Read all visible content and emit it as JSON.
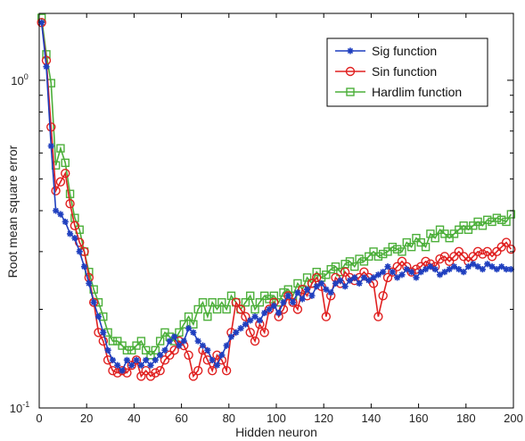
{
  "chart_data": {
    "type": "line",
    "title": "",
    "xlabel": "Hidden neuron",
    "ylabel": "Root mean square error",
    "xlim": [
      0,
      200
    ],
    "ylim": [
      0.1,
      1.6
    ],
    "yscale": "log",
    "grid": false,
    "legend_position": "top-right",
    "x_ticks": [
      "0",
      "20",
      "40",
      "60",
      "80",
      "100",
      "120",
      "140",
      "160",
      "180",
      "200"
    ],
    "y_ticks": [
      {
        "base": "10",
        "exp": "-1",
        "value": 0.1
      },
      {
        "base": "10",
        "exp": "0",
        "value": 1
      }
    ],
    "x": [
      1,
      3,
      5,
      7,
      9,
      11,
      13,
      15,
      17,
      19,
      21,
      23,
      25,
      27,
      29,
      31,
      33,
      35,
      37,
      39,
      41,
      43,
      45,
      47,
      49,
      51,
      53,
      55,
      57,
      59,
      61,
      63,
      65,
      67,
      69,
      71,
      73,
      75,
      77,
      79,
      81,
      83,
      85,
      87,
      89,
      91,
      93,
      95,
      97,
      99,
      101,
      103,
      105,
      107,
      109,
      111,
      113,
      115,
      117,
      119,
      121,
      123,
      125,
      127,
      129,
      131,
      133,
      135,
      137,
      139,
      141,
      143,
      145,
      147,
      149,
      151,
      153,
      155,
      157,
      159,
      161,
      163,
      165,
      167,
      169,
      171,
      173,
      175,
      177,
      179,
      181,
      183,
      185,
      187,
      189,
      191,
      193,
      195,
      197,
      199
    ],
    "series": [
      {
        "name": "Sig function",
        "color": "#1f3fbf",
        "marker": "star",
        "values": [
          1.5,
          1.1,
          0.63,
          0.4,
          0.39,
          0.37,
          0.34,
          0.33,
          0.3,
          0.27,
          0.24,
          0.21,
          0.19,
          0.17,
          0.15,
          0.14,
          0.135,
          0.13,
          0.14,
          0.135,
          0.14,
          0.135,
          0.14,
          0.135,
          0.14,
          0.145,
          0.15,
          0.16,
          0.165,
          0.155,
          0.16,
          0.175,
          0.17,
          0.16,
          0.155,
          0.15,
          0.14,
          0.135,
          0.145,
          0.155,
          0.165,
          0.17,
          0.175,
          0.18,
          0.185,
          0.19,
          0.185,
          0.195,
          0.2,
          0.205,
          0.195,
          0.21,
          0.22,
          0.21,
          0.225,
          0.215,
          0.23,
          0.22,
          0.235,
          0.24,
          0.23,
          0.225,
          0.24,
          0.245,
          0.235,
          0.245,
          0.25,
          0.24,
          0.25,
          0.245,
          0.25,
          0.255,
          0.26,
          0.27,
          0.26,
          0.25,
          0.255,
          0.265,
          0.26,
          0.25,
          0.26,
          0.265,
          0.27,
          0.265,
          0.255,
          0.26,
          0.265,
          0.27,
          0.265,
          0.26,
          0.27,
          0.275,
          0.27,
          0.265,
          0.275,
          0.27,
          0.265,
          0.27,
          0.265,
          0.265
        ]
      },
      {
        "name": "Sin function",
        "color": "#e02020",
        "marker": "circle",
        "values": [
          1.5,
          1.15,
          0.72,
          0.46,
          0.49,
          0.52,
          0.42,
          0.36,
          0.32,
          0.3,
          0.25,
          0.21,
          0.17,
          0.16,
          0.14,
          0.13,
          0.128,
          0.13,
          0.128,
          0.135,
          0.14,
          0.125,
          0.13,
          0.125,
          0.128,
          0.13,
          0.14,
          0.145,
          0.15,
          0.16,
          0.155,
          0.145,
          0.125,
          0.13,
          0.15,
          0.14,
          0.13,
          0.145,
          0.14,
          0.13,
          0.17,
          0.21,
          0.2,
          0.19,
          0.17,
          0.16,
          0.18,
          0.17,
          0.2,
          0.21,
          0.19,
          0.2,
          0.22,
          0.21,
          0.2,
          0.23,
          0.22,
          0.24,
          0.25,
          0.235,
          0.19,
          0.22,
          0.25,
          0.24,
          0.26,
          0.25,
          0.245,
          0.25,
          0.26,
          0.25,
          0.24,
          0.19,
          0.22,
          0.25,
          0.26,
          0.27,
          0.28,
          0.27,
          0.26,
          0.265,
          0.27,
          0.28,
          0.275,
          0.27,
          0.285,
          0.29,
          0.28,
          0.29,
          0.3,
          0.29,
          0.28,
          0.29,
          0.3,
          0.295,
          0.3,
          0.29,
          0.3,
          0.31,
          0.32,
          0.305
        ]
      },
      {
        "name": "Hardlim function",
        "color": "#4caf3a",
        "marker": "square",
        "values": [
          1.55,
          1.2,
          0.98,
          0.55,
          0.62,
          0.56,
          0.45,
          0.38,
          0.35,
          0.3,
          0.26,
          0.23,
          0.21,
          0.19,
          0.17,
          0.16,
          0.16,
          0.155,
          0.15,
          0.15,
          0.155,
          0.16,
          0.15,
          0.145,
          0.15,
          0.16,
          0.17,
          0.165,
          0.16,
          0.17,
          0.18,
          0.19,
          0.18,
          0.2,
          0.21,
          0.19,
          0.21,
          0.2,
          0.21,
          0.2,
          0.22,
          0.21,
          0.2,
          0.21,
          0.22,
          0.2,
          0.21,
          0.22,
          0.215,
          0.22,
          0.21,
          0.225,
          0.23,
          0.22,
          0.24,
          0.23,
          0.25,
          0.24,
          0.26,
          0.25,
          0.255,
          0.265,
          0.27,
          0.26,
          0.275,
          0.28,
          0.27,
          0.285,
          0.28,
          0.29,
          0.3,
          0.29,
          0.295,
          0.3,
          0.31,
          0.305,
          0.3,
          0.32,
          0.31,
          0.33,
          0.32,
          0.31,
          0.34,
          0.33,
          0.35,
          0.34,
          0.33,
          0.34,
          0.35,
          0.36,
          0.35,
          0.36,
          0.37,
          0.36,
          0.375,
          0.37,
          0.38,
          0.375,
          0.37,
          0.39
        ]
      }
    ]
  }
}
